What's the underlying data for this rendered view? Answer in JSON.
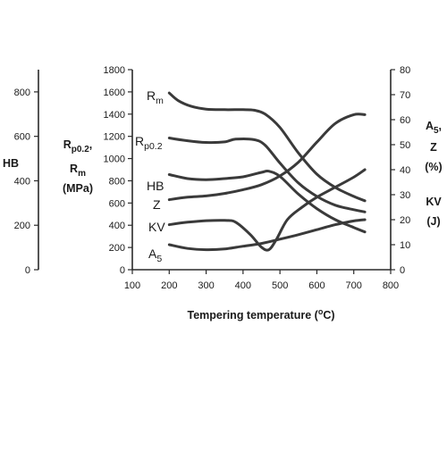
{
  "chart_data": {
    "type": "line",
    "xlabel": "Tempering temperature (°C)",
    "x_range": [
      100,
      800
    ],
    "x_ticks": [
      "100",
      "200",
      "300",
      "400",
      "500",
      "600",
      "700",
      "800"
    ],
    "y_left_outer": {
      "label": "HB",
      "range": [
        0,
        900
      ],
      "ticks": [
        "0",
        "200",
        "400",
        "600",
        "800"
      ]
    },
    "y_left_inner": {
      "label_lines": [
        "Rp0.2,",
        "Rm",
        "(MPa)"
      ],
      "range": [
        0,
        1800
      ],
      "ticks": [
        "0",
        "200",
        "400",
        "600",
        "800",
        "1000",
        "1200",
        "1400",
        "1600",
        "1800"
      ]
    },
    "y_right": {
      "label_lines": [
        "A5,",
        "Z",
        "(%)",
        "",
        "KV",
        "(J)"
      ],
      "range": [
        0,
        80
      ],
      "ticks": [
        "0",
        "10",
        "20",
        "30",
        "40",
        "50",
        "60",
        "70",
        "80"
      ]
    },
    "series": [
      {
        "name": "Rm",
        "axis": "inner",
        "x": [
          200,
          225,
          260,
          300,
          350,
          400,
          430,
          460,
          500,
          550,
          600,
          650,
          700,
          730
        ],
        "y": [
          1590,
          1520,
          1470,
          1445,
          1440,
          1440,
          1435,
          1400,
          1280,
          1050,
          860,
          740,
          660,
          620
        ]
      },
      {
        "name": "Rp0.2",
        "axis": "inner",
        "x": [
          200,
          250,
          300,
          350,
          380,
          430,
          460,
          500,
          550,
          600,
          650,
          700,
          730
        ],
        "y": [
          1185,
          1160,
          1145,
          1150,
          1175,
          1170,
          1120,
          960,
          780,
          660,
          580,
          540,
          520
        ]
      },
      {
        "name": "HB",
        "axis": "outer",
        "x": [
          200,
          250,
          300,
          350,
          400,
          450,
          470,
          500,
          550,
          600,
          650,
          700,
          730
        ],
        "y": [
          428,
          410,
          405,
          410,
          418,
          438,
          443,
          420,
          340,
          275,
          225,
          190,
          170
        ]
      },
      {
        "name": "Z",
        "axis": "right",
        "x": [
          200,
          250,
          300,
          350,
          400,
          450,
          500,
          550,
          600,
          650,
          700,
          730
        ],
        "y": [
          28,
          29,
          29.5,
          30.5,
          32,
          34,
          37.5,
          43,
          51,
          58.5,
          62,
          62
        ]
      },
      {
        "name": "KV",
        "axis": "right",
        "x": [
          200,
          250,
          300,
          350,
          380,
          420,
          450,
          470,
          490,
          520,
          560,
          600,
          650,
          700,
          730
        ],
        "y": [
          18,
          19,
          19.6,
          19.7,
          19,
          14,
          9,
          8,
          12,
          20,
          25,
          29,
          33,
          37,
          40
        ]
      },
      {
        "name": "A5",
        "axis": "right",
        "x": [
          200,
          250,
          300,
          350,
          400,
          450,
          500,
          550,
          600,
          650,
          700,
          730
        ],
        "y": [
          10,
          8.5,
          8,
          8.3,
          9.4,
          10.5,
          12.2,
          14,
          16,
          18,
          19.5,
          20
        ]
      }
    ],
    "legend": "labels placed next to curves",
    "grid": false
  }
}
